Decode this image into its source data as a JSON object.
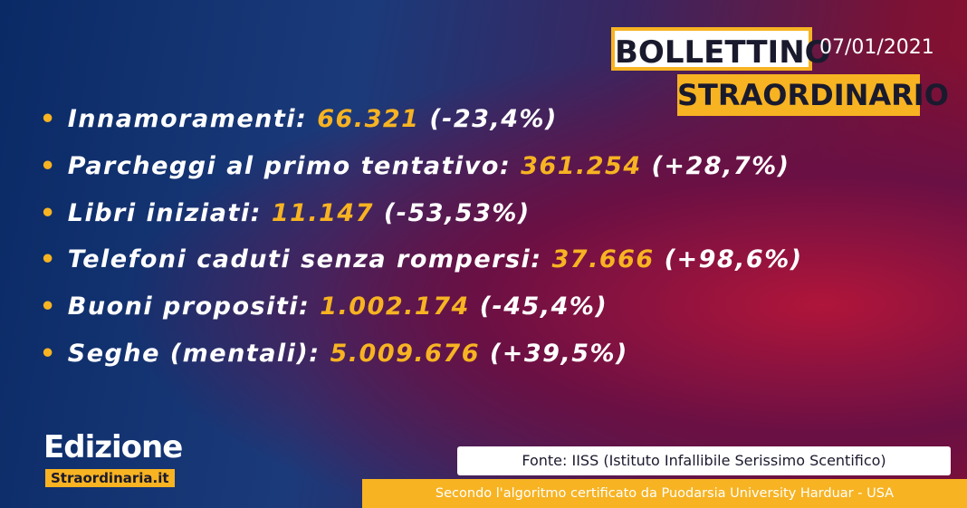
{
  "header": {
    "title_line1": "BOLLETTINO",
    "title_line2": "STRAORDINARIO",
    "date": "07/01/2021"
  },
  "items": [
    {
      "label": "Innamoramenti:",
      "value": "66.321",
      "change": "(-23,4%)"
    },
    {
      "label": "Parcheggi al primo tentativo:",
      "value": "361.254",
      "change": "(+28,7%)"
    },
    {
      "label": "Libri iniziati:",
      "value": "11.147",
      "change": "(-53,53%)"
    },
    {
      "label": "Telefoni caduti senza rompersi:",
      "value": "37.666",
      "change": "(+98,6%)"
    },
    {
      "label": "Buoni propositi:",
      "value": "1.002.174",
      "change": "(-45,4%)"
    },
    {
      "label": "Seghe (mentali):",
      "value": "5.009.676",
      "change": "(+39,5%)"
    }
  ],
  "logo": {
    "line1": "Edizione",
    "line2": "Straordinaria",
    "suffix": ".it"
  },
  "footer": {
    "source": "Fonte: IISS (Istituto Infallibile Serissimo Scentifico)",
    "note": "Secondo l'algoritmo certificato da Puodarsia University Harduar - USA"
  }
}
